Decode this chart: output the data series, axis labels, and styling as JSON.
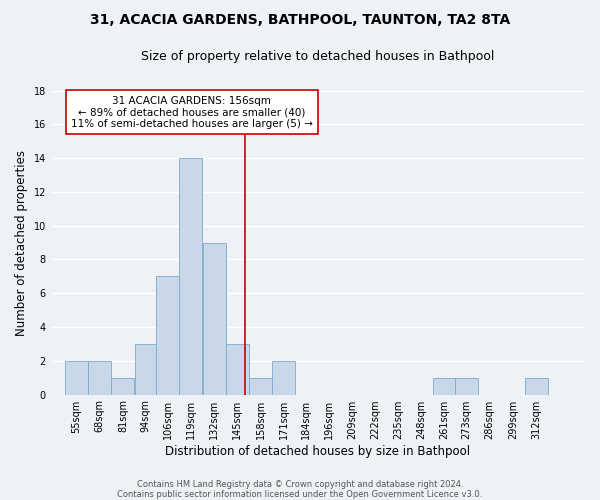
{
  "title_line1": "31, ACACIA GARDENS, BATHPOOL, TAUNTON, TA2 8TA",
  "title_line2": "Size of property relative to detached houses in Bathpool",
  "xlabel": "Distribution of detached houses by size in Bathpool",
  "ylabel": "Number of detached properties",
  "bin_labels": [
    "55sqm",
    "68sqm",
    "81sqm",
    "94sqm",
    "106sqm",
    "119sqm",
    "132sqm",
    "145sqm",
    "158sqm",
    "171sqm",
    "184sqm",
    "196sqm",
    "209sqm",
    "222sqm",
    "235sqm",
    "248sqm",
    "261sqm",
    "273sqm",
    "286sqm",
    "299sqm",
    "312sqm"
  ],
  "bar_heights": [
    2,
    2,
    1,
    3,
    7,
    14,
    9,
    3,
    1,
    2,
    0,
    0,
    0,
    0,
    0,
    0,
    1,
    1,
    0,
    0,
    1
  ],
  "bin_edges": [
    55,
    68,
    81,
    94,
    106,
    119,
    132,
    145,
    158,
    171,
    184,
    196,
    209,
    222,
    235,
    248,
    261,
    273,
    286,
    299,
    312,
    325
  ],
  "bar_color": "#c8d8e8",
  "bar_edgecolor": "#7aaac8",
  "reference_line_x": 156,
  "reference_line_color": "#cc0000",
  "annotation_text": "31 ACACIA GARDENS: 156sqm\n← 89% of detached houses are smaller (40)\n11% of semi-detached houses are larger (5) →",
  "annotation_box_edgecolor": "#cc0000",
  "annotation_box_facecolor": "#ffffff",
  "ylim": [
    0,
    18
  ],
  "yticks": [
    0,
    2,
    4,
    6,
    8,
    10,
    12,
    14,
    16,
    18
  ],
  "background_color": "#eef2f7",
  "grid_color": "#ffffff",
  "footnote": "Contains HM Land Registry data © Crown copyright and database right 2024.\nContains public sector information licensed under the Open Government Licence v3.0.",
  "title_fontsize": 10,
  "subtitle_fontsize": 9,
  "axis_label_fontsize": 8.5,
  "tick_fontsize": 7,
  "annotation_fontsize": 7.5,
  "footnote_fontsize": 6
}
